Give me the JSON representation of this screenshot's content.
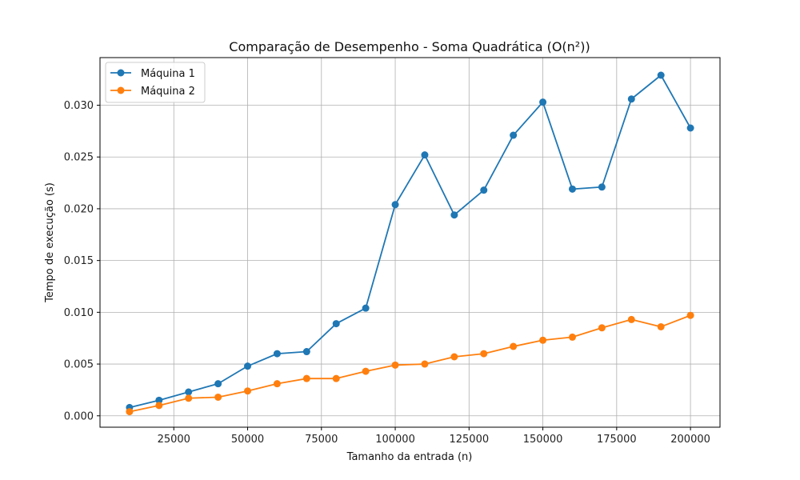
{
  "chart_data": {
    "type": "line",
    "title": "Comparação de Desempenho - Soma Quadrática (O(n²))",
    "xlabel": "Tamanho da entrada (n)",
    "ylabel": "Tempo de execução (s)",
    "xlim": [
      0,
      210000
    ],
    "ylim": [
      -0.0011,
      0.0346
    ],
    "x_ticks": [
      25000,
      50000,
      75000,
      100000,
      125000,
      150000,
      175000,
      200000
    ],
    "x_tick_labels": [
      "25000",
      "50000",
      "75000",
      "100000",
      "125000",
      "150000",
      "175000",
      "200000"
    ],
    "y_ticks": [
      0.0,
      0.005,
      0.01,
      0.015,
      0.02,
      0.025,
      0.03
    ],
    "y_tick_labels": [
      "0.000",
      "0.005",
      "0.010",
      "0.015",
      "0.020",
      "0.025",
      "0.030"
    ],
    "grid": true,
    "legend_position": "top-left",
    "x": [
      10000,
      20000,
      30000,
      40000,
      50000,
      60000,
      70000,
      80000,
      90000,
      100000,
      110000,
      120000,
      130000,
      140000,
      150000,
      160000,
      170000,
      180000,
      190000,
      200000
    ],
    "series": [
      {
        "name": "Máquina 1",
        "color": "#1f77b4",
        "values": [
          0.0008,
          0.0015,
          0.0023,
          0.0031,
          0.0048,
          0.006,
          0.0062,
          0.0089,
          0.0104,
          0.0204,
          0.0252,
          0.0194,
          0.0218,
          0.0271,
          0.0303,
          0.0219,
          0.0221,
          0.0306,
          0.0329,
          0.0278
        ]
      },
      {
        "name": "Máquina 2",
        "color": "#ff7f0e",
        "values": [
          0.0004,
          0.001,
          0.0017,
          0.0018,
          0.0024,
          0.0031,
          0.0036,
          0.0036,
          0.0043,
          0.0049,
          0.005,
          0.0057,
          0.006,
          0.0067,
          0.0073,
          0.0076,
          0.0085,
          0.0093,
          0.0086,
          0.0097
        ]
      }
    ]
  }
}
